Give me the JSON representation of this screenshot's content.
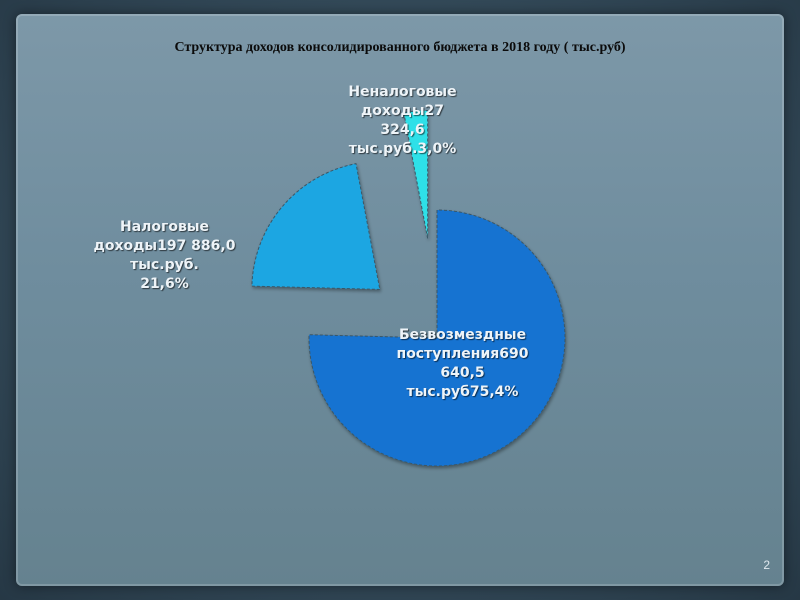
{
  "slide": {
    "title": "Структура доходов консолидированного бюджета в 2018 году ( тыс.руб)",
    "page_number": "2"
  },
  "chart_data": {
    "type": "pie",
    "title": "Структура доходов консолидированного бюджета в 2018 году ( тыс.руб)",
    "unit": "тыс.руб",
    "slices": [
      {
        "name": "Безвозмездные поступления",
        "value": 690640.5,
        "percent": 75.4,
        "label": "Безвозмездные\nпоступления690\n640,5\nтыс.руб75,4%",
        "color": "#1473d1"
      },
      {
        "name": "Налоговые доходы",
        "value": 197886.0,
        "percent": 21.6,
        "label": "Налоговые\nдоходы197 886,0\nтыс.руб.\n21,6%",
        "color": "#1aa6e2"
      },
      {
        "name": "Неналоговые доходы",
        "value": 27324.6,
        "percent": 3.0,
        "label": "Неналоговые\nдоходы27 324,6\nтыс.руб.3,0%",
        "color": "#2ee0e8"
      }
    ]
  }
}
